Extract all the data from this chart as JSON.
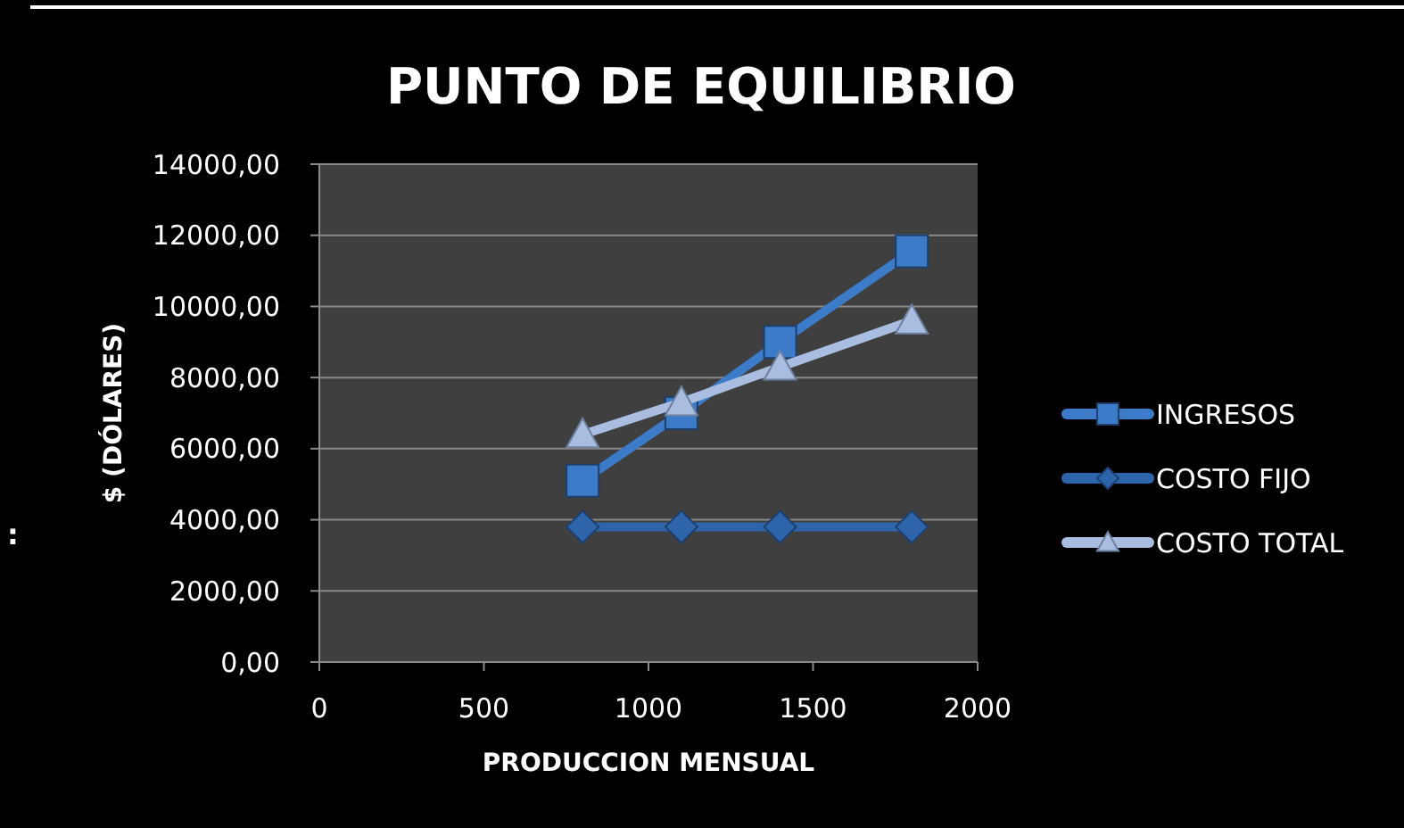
{
  "chart_data": {
    "type": "line",
    "title": "PUNTO DE EQUILIBRIO",
    "xlabel": "PRODUCCION MENSUAL",
    "ylabel": "$ (DÓLARES)",
    "x": [
      800,
      1100,
      1400,
      1800
    ],
    "series": [
      {
        "name": "INGRESOS",
        "color": "#3b7bc8",
        "marker": "square",
        "values": [
          5100,
          7000,
          9000,
          11550
        ]
      },
      {
        "name": "COSTO FIJO",
        "color": "#2e65aa",
        "marker": "diamond",
        "values": [
          3800,
          3800,
          3800,
          3800
        ]
      },
      {
        "name": "COSTO TOTAL",
        "color": "#a8bde0",
        "marker": "triangle",
        "values": [
          6400,
          7300,
          8300,
          9600
        ]
      }
    ],
    "xlim": [
      0,
      2000
    ],
    "xticks": [
      0,
      500,
      1000,
      1500,
      2000
    ],
    "ylim": [
      0,
      14000
    ],
    "yticks": [
      {
        "value": 0,
        "label": "0,00"
      },
      {
        "value": 2000,
        "label": "2000,00"
      },
      {
        "value": 4000,
        "label": "4000,00"
      },
      {
        "value": 6000,
        "label": "6000,00"
      },
      {
        "value": 8000,
        "label": "8000,00"
      },
      {
        "value": 10000,
        "label": "10000,00"
      },
      {
        "value": 12000,
        "label": "12000,00"
      },
      {
        "value": 14000,
        "label": "14000,00"
      }
    ],
    "grid": "y",
    "legend": "right",
    "line_style": "solid",
    "annotations": [
      ":"
    ]
  }
}
